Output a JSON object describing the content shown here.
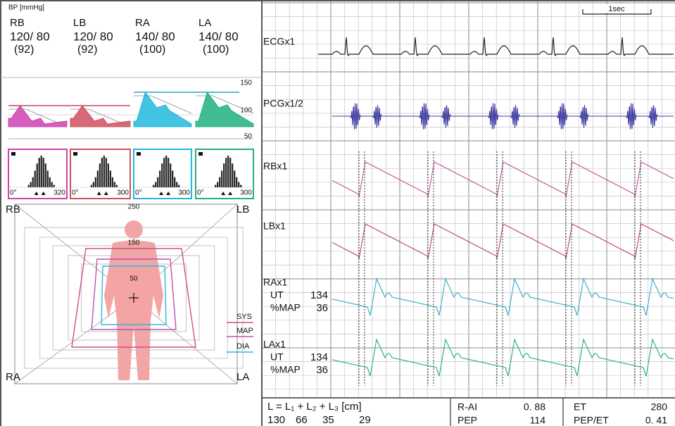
{
  "bp_panel": {
    "title": "BP [mmHg]",
    "limbs": [
      {
        "name": "RB",
        "color": "#d040b0",
        "pressure": "120/ 80",
        "mean": "(92)"
      },
      {
        "name": "LB",
        "color": "#d05060",
        "pressure": "120/ 80",
        "mean": "(92)"
      },
      {
        "name": "RA",
        "color": "#20b8dc",
        "pressure": "140/ 80",
        "mean": "(100)"
      },
      {
        "name": "LA",
        "color": "#20b080",
        "pressure": "140/ 80",
        "mean": "(100)"
      }
    ]
  },
  "waveform_scale": [
    "150",
    "100",
    "50"
  ],
  "histograms": [
    {
      "start": "0°",
      "end": "320"
    },
    {
      "start": "0°",
      "end": "300"
    },
    {
      "start": "0°",
      "end": "300"
    },
    {
      "start": "0°",
      "end": "300"
    }
  ],
  "radar": {
    "rings": [
      "250",
      "150",
      "50"
    ],
    "corners": [
      "RB",
      "LB",
      "RA",
      "LA"
    ],
    "legend": [
      "SYS",
      "MAP",
      "DIA"
    ]
  },
  "trace_panel": {
    "time_scale": "1sec",
    "channels": [
      {
        "label": "ECGx1"
      },
      {
        "label": "PCGx1/2"
      },
      {
        "label": "RBx1"
      },
      {
        "label": "LBx1"
      },
      {
        "label": "RAx1",
        "ut_label": "UT",
        "ut": "134",
        "map_label": "%MAP",
        "map": "36"
      },
      {
        "label": "LAx1",
        "ut_label": "UT",
        "ut": "134",
        "map_label": "%MAP",
        "map": "36"
      }
    ]
  },
  "footer": {
    "length_formula": "L = L₁ + L₂ + L₃ [cm]",
    "lengths": [
      "130",
      "66",
      "35",
      "29"
    ],
    "r_ai_label": "R-AI",
    "r_ai": "0. 88",
    "pep_label": "PEP",
    "pep": "114",
    "et_label": "ET",
    "et": "280",
    "pep_et_label": "PEP/ET",
    "pep_et": "0. 41"
  }
}
